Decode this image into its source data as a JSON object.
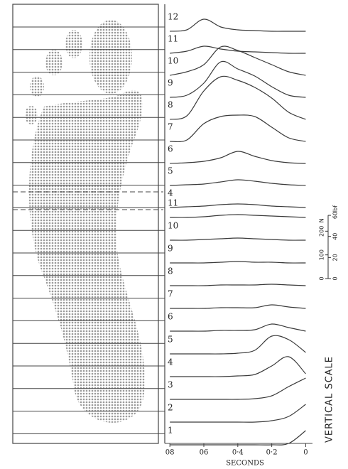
{
  "chart_data": {
    "type": "line",
    "x_label": "SECONDS",
    "x": [
      0.8,
      0.7,
      0.6,
      0.5,
      0.4,
      0.3,
      0.2,
      0.1,
      0
    ],
    "xlim": [
      0.83,
      -0.04
    ],
    "xticks": [
      {
        "value": 0.8,
        "label": "08"
      },
      {
        "value": 0.6,
        "label": "06"
      },
      {
        "value": 0.4,
        "label": "0·4"
      },
      {
        "value": 0.2,
        "label": "0·2"
      },
      0
    ],
    "color": "#3a3a3a",
    "series": [
      {
        "name": "12",
        "values": [
          0,
          6,
          51,
          18,
          6,
          3,
          0,
          0,
          0
        ]
      },
      {
        "name": "11",
        "values": [
          0,
          9,
          30,
          18,
          9,
          6,
          3,
          0,
          0
        ]
      },
      {
        "name": "10",
        "values": [
          0,
          15,
          45,
          120,
          105,
          75,
          45,
          15,
          0
        ]
      },
      {
        "name": "9",
        "values": [
          0,
          9,
          60,
          150,
          120,
          90,
          45,
          9,
          0
        ]
      },
      {
        "name": "8",
        "values": [
          0,
          15,
          120,
          180,
          165,
          135,
          90,
          30,
          0
        ]
      },
      {
        "name": "7",
        "values": [
          0,
          6,
          75,
          105,
          111,
          105,
          60,
          15,
          0
        ]
      },
      {
        "name": "6",
        "values": [
          0,
          3,
          9,
          24,
          51,
          30,
          12,
          3,
          0
        ]
      },
      {
        "name": "5",
        "values": [
          0,
          3,
          6,
          15,
          24,
          18,
          9,
          3,
          0
        ]
      },
      {
        "name": "4",
        "values": [
          0,
          3,
          6,
          12,
          15,
          12,
          6,
          3,
          0
        ]
      },
      {
        "name": "11",
        "values": [
          0,
          0,
          3,
          9,
          12,
          9,
          6,
          3,
          0
        ]
      },
      {
        "name": "10",
        "values": [
          0,
          0,
          3,
          6,
          9,
          6,
          3,
          0,
          0
        ]
      },
      {
        "name": "9",
        "values": [
          0,
          0,
          0,
          3,
          6,
          3,
          3,
          0,
          0
        ]
      },
      {
        "name": "8",
        "values": [
          0,
          0,
          0,
          3,
          3,
          3,
          6,
          3,
          0
        ]
      },
      {
        "name": "7",
        "values": [
          0,
          0,
          0,
          3,
          3,
          3,
          15,
          6,
          0
        ]
      },
      {
        "name": "6",
        "values": [
          0,
          0,
          0,
          3,
          3,
          6,
          30,
          15,
          0
        ]
      },
      {
        "name": "5",
        "values": [
          0,
          0,
          0,
          0,
          3,
          15,
          75,
          60,
          6
        ]
      },
      {
        "name": "4",
        "values": [
          0,
          0,
          0,
          0,
          3,
          9,
          45,
          84,
          12
        ]
      },
      {
        "name": "3",
        "values": [
          0,
          0,
          0,
          0,
          0,
          3,
          15,
          54,
          90
        ]
      },
      {
        "name": "2",
        "values": [
          0,
          0,
          0,
          0,
          0,
          0,
          6,
          24,
          75
        ]
      },
      {
        "name": "1",
        "values": [
          0,
          0,
          0,
          0,
          0,
          0,
          0,
          6,
          60
        ]
      }
    ],
    "vertical_scale": {
      "title": "VERTICAL SCALE",
      "newton_ticks": [
        0,
        100,
        200
      ],
      "newton_unit": "N",
      "lbf_ticks": [
        0,
        20,
        40,
        60
      ],
      "lbf_unit": "lbf"
    }
  }
}
